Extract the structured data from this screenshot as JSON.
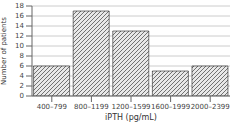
{
  "chart_data": {
    "type": "bar",
    "categories": [
      "400–799",
      "800–1199",
      "1200–1599",
      "1600–1999",
      "2000–2399"
    ],
    "values": [
      6,
      17,
      13,
      5,
      6
    ],
    "color": "#e8e8e8",
    "xlabel": "iPTH (pg/mL)",
    "ylabel": "Number of patients",
    "ylim": [
      0,
      18
    ],
    "yticks": [
      0,
      2,
      4,
      6,
      8,
      10,
      12,
      14,
      16,
      18
    ],
    "grid": true
  }
}
